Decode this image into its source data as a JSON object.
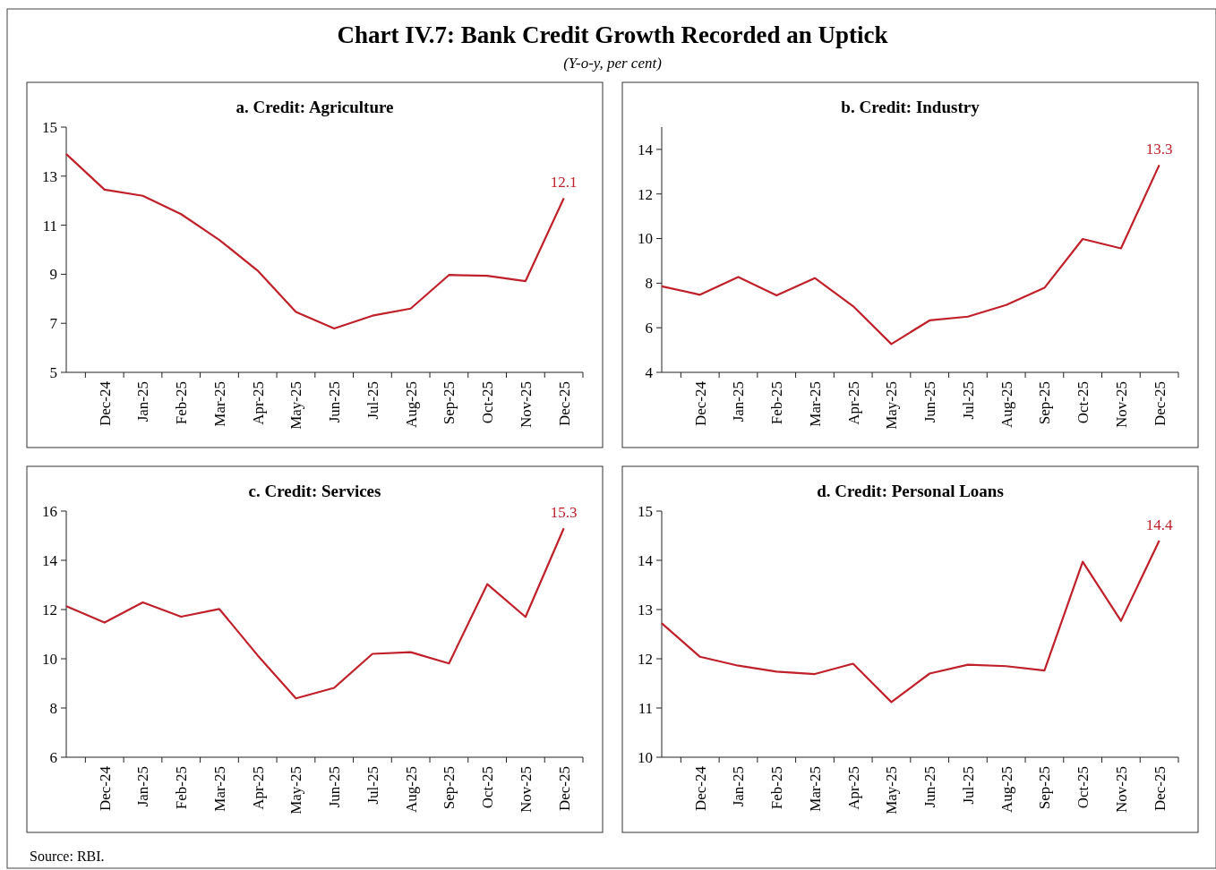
{
  "chart_data": [
    {
      "type": "line",
      "title": "a. Credit: Agriculture",
      "annotations": [
        "Chart IV.7: Bank Credit Growth Recorded an Uptick",
        "(Y-o-y, per cent)",
        "Source: RBI."
      ],
      "categories": [
        null,
        "Dec-24",
        "Jan-25",
        "Feb-25",
        "Mar-25",
        "Apr-25",
        "May-25",
        "Jun-25",
        "Jul-25",
        "Aug-25",
        "Sep-25",
        "Oct-25",
        "Nov-25",
        "Dec-25"
      ],
      "values": [
        13.9,
        12.45,
        12.2,
        11.45,
        10.4,
        9.15,
        7.46,
        6.79,
        7.31,
        7.6,
        8.97,
        8.94,
        8.72,
        12.1
      ],
      "value_labels": [
        null,
        null,
        null,
        null,
        null,
        null,
        null,
        null,
        null,
        null,
        null,
        null,
        null,
        "12.1"
      ],
      "color": "#c0202a",
      "ylim": [
        5,
        15
      ],
      "yticks": [
        5,
        7,
        9,
        11,
        13,
        15
      ]
    },
    {
      "type": "line",
      "title": "b. Credit: Industry",
      "categories": [
        null,
        "Dec-24",
        "Jan-25",
        "Feb-25",
        "Mar-25",
        "Apr-25",
        "May-25",
        "Jun-25",
        "Jul-25",
        "Aug-25",
        "Sep-25",
        "Oct-25",
        "Nov-25",
        "Dec-25"
      ],
      "values": [
        7.86,
        7.48,
        8.28,
        7.45,
        8.23,
        6.97,
        5.27,
        6.33,
        6.5,
        7.02,
        7.79,
        9.98,
        9.56,
        13.3
      ],
      "value_labels": [
        null,
        null,
        null,
        null,
        null,
        null,
        null,
        null,
        null,
        null,
        null,
        null,
        null,
        "13.3"
      ],
      "color": "#c0202a",
      "ylim": [
        4,
        15
      ],
      "yticks": [
        4,
        6,
        8,
        10,
        12,
        14
      ]
    },
    {
      "type": "line",
      "title": "c. Credit: Services",
      "categories": [
        null,
        "Dec-24",
        "Jan-25",
        "Feb-25",
        "Mar-25",
        "Apr-25",
        "May-25",
        "Jun-25",
        "Jul-25",
        "Aug-25",
        "Sep-25",
        "Oct-25",
        "Nov-25",
        "Dec-25"
      ],
      "values": [
        12.14,
        11.47,
        12.29,
        11.71,
        12.02,
        10.14,
        8.39,
        8.82,
        10.2,
        10.27,
        9.81,
        13.03,
        11.7,
        15.3
      ],
      "value_labels": [
        null,
        null,
        null,
        null,
        null,
        null,
        null,
        null,
        null,
        null,
        null,
        null,
        null,
        "15.3"
      ],
      "color": "#c0202a",
      "ylim": [
        6,
        16
      ],
      "yticks": [
        6,
        8,
        10,
        12,
        14,
        16
      ]
    },
    {
      "type": "line",
      "title": "d. Credit: Personal Loans",
      "categories": [
        null,
        "Dec-24",
        "Jan-25",
        "Feb-25",
        "Mar-25",
        "Apr-25",
        "May-25",
        "Jun-25",
        "Jul-25",
        "Aug-25",
        "Sep-25",
        "Oct-25",
        "Nov-25",
        "Dec-25"
      ],
      "values": [
        12.72,
        12.04,
        11.86,
        11.74,
        11.69,
        11.9,
        11.12,
        11.7,
        11.88,
        11.85,
        11.76,
        13.97,
        12.77,
        14.4
      ],
      "value_labels": [
        null,
        null,
        null,
        null,
        null,
        null,
        null,
        null,
        null,
        null,
        null,
        null,
        null,
        "14.4"
      ],
      "color": "#c0202a",
      "ylim": [
        10,
        15
      ],
      "yticks": [
        10,
        11,
        12,
        13,
        14,
        15
      ]
    }
  ]
}
